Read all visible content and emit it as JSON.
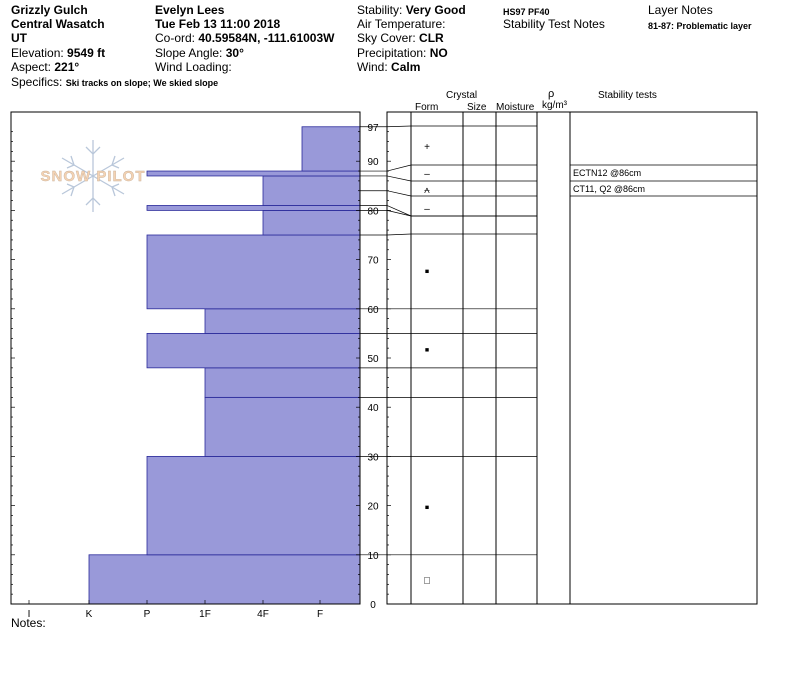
{
  "header": {
    "location": "Grizzly Gulch",
    "range": "Central Wasatch",
    "state": "UT",
    "elevation_label": "Elevation:",
    "elevation_value": "9549 ft",
    "aspect_label": "Aspect:",
    "aspect_value": "221°",
    "specifics_label": "Specifics:",
    "specifics_value": "Ski tracks on slope; We skied slope",
    "observer": "Evelyn Lees",
    "datetime": "Tue Feb 13 11:00 2018",
    "coord_label": "Co-ord:",
    "coord_value": "40.59584N, -111.61003W",
    "slope_label": "Slope Angle:",
    "slope_value": "30°",
    "wind_loading_label": "Wind Loading:",
    "wind_loading_value": "",
    "stability_label": "Stability:",
    "stability_value": "Very Good",
    "air_temp_label": "Air Temperature:",
    "air_temp_value": "",
    "sky_label": "Sky Cover:",
    "sky_value": "CLR",
    "precip_label": "Precipitation:",
    "precip_value": "NO",
    "wind_label": "Wind:",
    "wind_value": "Calm",
    "hs_pf": "HS97  PF40",
    "stability_notes": "Stability Test Notes",
    "layer_notes": "Layer Notes",
    "layer_note_1": "81-87: Problematic layer"
  },
  "watermark": "SNOW PILOT",
  "columns": {
    "crystal": "Crystal",
    "form": "Form",
    "size": "Size",
    "moisture": "Moisture",
    "rho": "ρ",
    "density_unit": "kg/m³",
    "stability_tests": "Stability tests"
  },
  "notes_label": "Notes:",
  "chart_data": {
    "type": "bar",
    "orientation": "horizontal-profile",
    "x_categories": [
      "I",
      "K",
      "P",
      "1F",
      "4F",
      "F"
    ],
    "y_ticks": [
      0,
      10,
      20,
      30,
      40,
      50,
      60,
      70,
      80,
      90,
      97
    ],
    "ylim": [
      0,
      100
    ],
    "bar_color": "#9999d9",
    "edge_color": "#2a2a9a",
    "hardness_layers": [
      {
        "bottom": 0,
        "top": 10,
        "hardness": "K"
      },
      {
        "bottom": 10,
        "top": 30,
        "hardness": "P"
      },
      {
        "bottom": 30,
        "top": 42,
        "hardness": "1F"
      },
      {
        "bottom": 42,
        "top": 48,
        "hardness": "1F"
      },
      {
        "bottom": 48,
        "top": 55,
        "hardness": "P"
      },
      {
        "bottom": 55,
        "top": 60,
        "hardness": "1F"
      },
      {
        "bottom": 60,
        "top": 75,
        "hardness": "P"
      },
      {
        "bottom": 75,
        "top": 80,
        "hardness": "4F"
      },
      {
        "bottom": 80,
        "top": 81,
        "hardness": "P"
      },
      {
        "bottom": 81,
        "top": 87,
        "hardness": "4F"
      },
      {
        "bottom": 87,
        "top": 88,
        "hardness": "P"
      },
      {
        "bottom": 88,
        "top": 97,
        "hardness": "4F-F"
      }
    ],
    "layer_boundaries": [
      97,
      88,
      87,
      84,
      81,
      80,
      75,
      60,
      55,
      48,
      42,
      30,
      10,
      0
    ],
    "crystal_forms": [
      {
        "depth": 93,
        "symbol": "+"
      },
      {
        "depth": 87.5,
        "symbol": "–"
      },
      {
        "depth": 84,
        "symbol": "⩜"
      },
      {
        "depth": 80.5,
        "symbol": "–"
      },
      {
        "depth": 68,
        "symbol": "■"
      },
      {
        "depth": 52,
        "symbol": "■"
      },
      {
        "depth": 20,
        "symbol": "■"
      },
      {
        "depth": 5,
        "symbol": "□"
      }
    ],
    "stability_tests": [
      {
        "label": "ECTN12 @86cm",
        "depth": 86
      },
      {
        "label": "CT11, Q2 @86cm",
        "depth": 86
      }
    ]
  }
}
